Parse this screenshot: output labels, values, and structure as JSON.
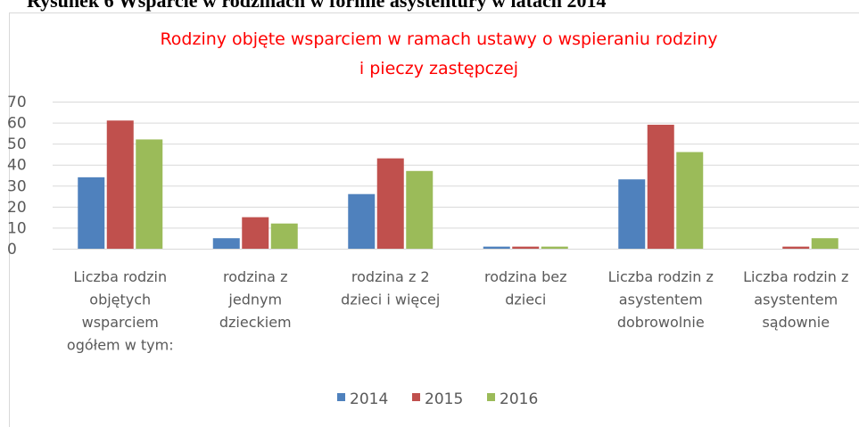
{
  "caption": "Rysunek 6 Wsparcie w rodzinach w formie asystentury w latach 2014",
  "chart_data": {
    "type": "bar",
    "title": [
      "Rodziny objęte wsparciem w ramach ustawy o wspieraniu rodziny",
      "i pieczy zastępczej"
    ],
    "categories": [
      "Liczba rodzin\nobjętych\nwsparciem\nogółem w tym:",
      "rodzina z\njednym\ndzieckiem",
      "rodzina z 2\ndzieci i więcej",
      "rodzina bez\ndzieci",
      "Liczba rodzin z\nasystentem\ndobrowolnie",
      "Liczba rodzin z\nasystentem\nsądownie"
    ],
    "series": [
      {
        "name": "2014",
        "color": "#4f81bd",
        "values": [
          34,
          5,
          26,
          1,
          33,
          0
        ]
      },
      {
        "name": "2015",
        "color": "#c0504d",
        "values": [
          61,
          15,
          43,
          1,
          59,
          1
        ]
      },
      {
        "name": "2016",
        "color": "#9bbb59",
        "values": [
          52,
          12,
          37,
          1,
          46,
          5
        ]
      }
    ],
    "ylim": [
      0,
      70
    ],
    "yticks": [
      0,
      10,
      20,
      30,
      40,
      50,
      60,
      70
    ],
    "grid": true,
    "legend": "bottom"
  }
}
